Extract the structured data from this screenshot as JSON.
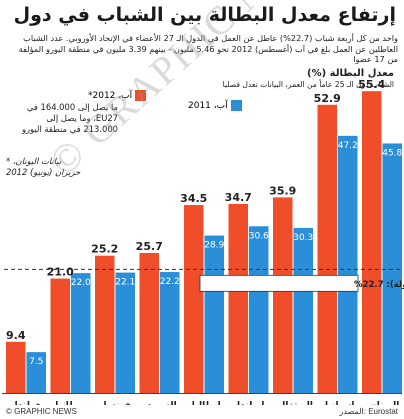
{
  "title": "إرتفاع معدل البطالة بين الشباب في دول الإتحاد الأوروبي",
  "intro": "واحد من كل أربعة شباب (22.7%) عاطل عن العمل في الدول الـ 27 الأعضاء في الإتحاد الأوروبي. عدد الشباب العاطلين عن العمل بلغ في آب (أغسطس) 2012 نحو 5.46 مليون - بينهم 3.39 مليون في منطقة اليورو المؤلفة من 17 عضوا",
  "legend": {
    "title": "معدل البطالة (%)",
    "subtitle": "الشباب دون الـ 25 عاماً من العمر، البيانات تعدل فصليا",
    "items": [
      {
        "label": "آب، 2012*",
        "color": "#f04e2a"
      },
      {
        "label": "آب، 2011",
        "color": "#2a8fd8"
      }
    ]
  },
  "note_eu": "ما يصل إلى 164.000 في EU27، وما يصل إلى 213.000 في منطقة اليورو",
  "note_greece": "* بيانات اليونان، حزيران (يونيو) 2012",
  "average_label": "متوسط دول الاتحاد الأوروبي (27 دولة): 22.7%",
  "source": "المصدر: Eurostat",
  "credit": "© GRAPHIC NEWS",
  "watermark": "© GRAPHIC NEWS",
  "chart_data": {
    "type": "bar",
    "categories": [
      "هولندا",
      "بريطانيا",
      "فرنسا",
      "السويد",
      "ايطاليا",
      "ايرلندا",
      "البرتغال",
      "إسبانيا",
      "اليونان"
    ],
    "series": [
      {
        "name": "آب، 2012*",
        "values": [
          9.4,
          21.0,
          25.2,
          25.7,
          34.5,
          34.7,
          35.9,
          52.9,
          55.4
        ]
      },
      {
        "name": "آب، 2011",
        "values": [
          7.5,
          22.0,
          22.1,
          22.2,
          28.9,
          30.6,
          30.3,
          47.2,
          45.8
        ]
      }
    ],
    "colors": {
      "aug_2012": "#f04e2a",
      "aug_2011": "#2a8fd8"
    },
    "eu_average": 22.7,
    "ylim": [
      0,
      58
    ],
    "grid": false
  }
}
